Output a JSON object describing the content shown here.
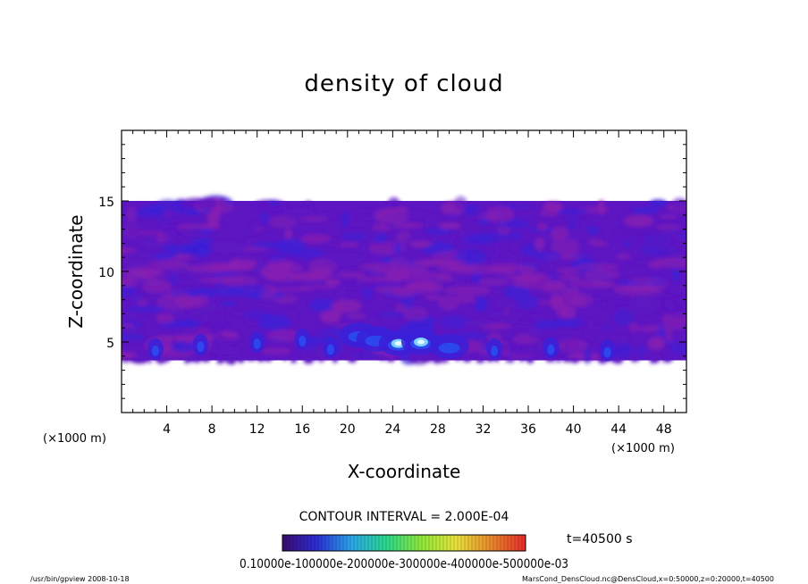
{
  "chart_data": {
    "type": "heatmap",
    "title": "density of cloud",
    "xlabel": "X-coordinate",
    "ylabel": "Z-coordinate",
    "x_unit": "(×1000 m)",
    "y_unit": "(×1000 m)",
    "xlim": [
      0,
      50
    ],
    "ylim": [
      0,
      20
    ],
    "x_ticks": [
      "4",
      "8",
      "12",
      "16",
      "20",
      "24",
      "28",
      "32",
      "36",
      "40",
      "44",
      "48"
    ],
    "y_ticks": [
      "5",
      "10",
      "15"
    ],
    "contour_interval_label": "CONTOUR INTERVAL = 2.000E-04",
    "time_label": "t=40500 s",
    "colorbar_labels_text": "0.10000e-100000e-200000e-300000e-400000e-500000e-03",
    "colorbar_range": [
      0.0,
      0.0006
    ],
    "cloud_layer": {
      "z_bottom": 3.7,
      "z_top": 15.0,
      "dominant_colors": [
        "#8a1fb0",
        "#5d16c2",
        "#3a20d8",
        "#2b4cf0"
      ],
      "strong_cells_x": [
        3,
        7,
        12,
        16,
        18.5,
        21,
        22.5,
        24.5,
        26.5,
        29,
        33,
        38,
        43
      ],
      "strong_cells_z": [
        4.5,
        4.8,
        5.0,
        5.2,
        4.6,
        5.5,
        5.2,
        4.9,
        5.0,
        4.7,
        4.5,
        4.6,
        4.4
      ]
    },
    "colorbar_colors": [
      "#3b0a6e",
      "#2a2fd6",
      "#2aa6e8",
      "#2ad88a",
      "#8ee83a",
      "#e8e23a",
      "#e8892a",
      "#e82a2a"
    ]
  },
  "footer": {
    "left": "/usr/bin/gpview   2008-10-18",
    "right": "MarsCond_DensCloud.nc@DensCloud,x=0:50000,z=0:20000,t=40500"
  }
}
